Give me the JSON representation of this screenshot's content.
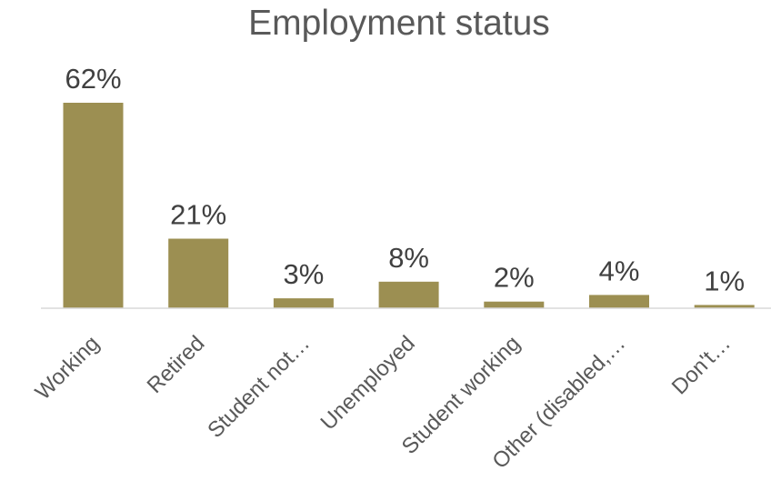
{
  "chart_data": {
    "type": "bar",
    "title": "Employment status",
    "categories": [
      "Working",
      "Retired",
      "Student not…",
      "Unemployed",
      "Student working",
      "Other (disabled,…",
      "Don't…"
    ],
    "values": [
      62,
      21,
      3,
      8,
      2,
      4,
      1
    ],
    "data_labels": [
      "62%",
      "21%",
      "3%",
      "8%",
      "2%",
      "4%",
      "1%"
    ],
    "unit": "%",
    "xlabel": "",
    "ylabel": "",
    "ylim": [
      0,
      62
    ],
    "grid": false,
    "legend": "none",
    "colors": {
      "bar": "#9c8f52",
      "axis": "#d9d9d9"
    }
  }
}
